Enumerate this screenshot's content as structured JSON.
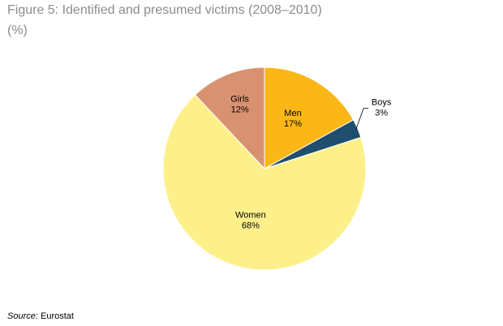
{
  "figure": {
    "title": "Figure 5: Identified and presumed victims (2008–2010)",
    "subtitle": "(%)"
  },
  "chart_data": {
    "type": "pie",
    "title": "Figure 5: Identified and presumed victims (2008–2010)",
    "subtitle": "(%)",
    "slices": [
      {
        "label": "Men",
        "value": 17,
        "value_text": "17%",
        "color": "#fbb716"
      },
      {
        "label": "Boys",
        "value": 3,
        "value_text": "3%",
        "color": "#1f4e6e"
      },
      {
        "label": "Women",
        "value": 68,
        "value_text": "68%",
        "color": "#fdf08a"
      },
      {
        "label": "Girls",
        "value": 12,
        "value_text": "12%",
        "color": "#d89271"
      }
    ],
    "start_angle_deg": 0,
    "direction": "clockwise",
    "legend": "none"
  },
  "source": {
    "label": "Source:",
    "text": "Eurostat"
  }
}
